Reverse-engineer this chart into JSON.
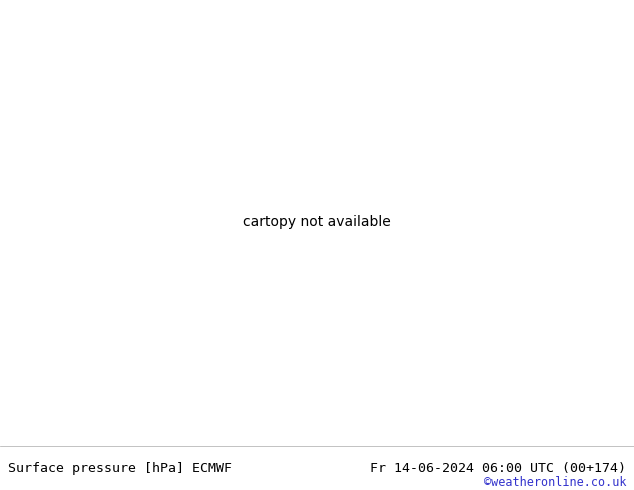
{
  "title_left": "Surface pressure [hPa] ECMWF",
  "title_right": "Fr 14-06-2024 06:00 UTC (00+174)",
  "credit": "©weatheronline.co.uk",
  "bg_color": "#d8d8d8",
  "land_color": "#c8e8b0",
  "sea_color": "#d8d8d8",
  "coastline_color": "#888888",
  "contour_color_blue": "#0000bb",
  "contour_color_black": "#000000",
  "contour_color_red": "#cc0000",
  "text_color_left": "#000000",
  "text_color_right": "#000000",
  "text_color_credit": "#3333cc",
  "font_size_title": 9.5,
  "font_size_credit": 8.5,
  "figwidth": 6.34,
  "figheight": 4.9,
  "dpi": 100,
  "lon_min": 85,
  "lon_max": 175,
  "lat_min": -25,
  "lat_max": 52
}
